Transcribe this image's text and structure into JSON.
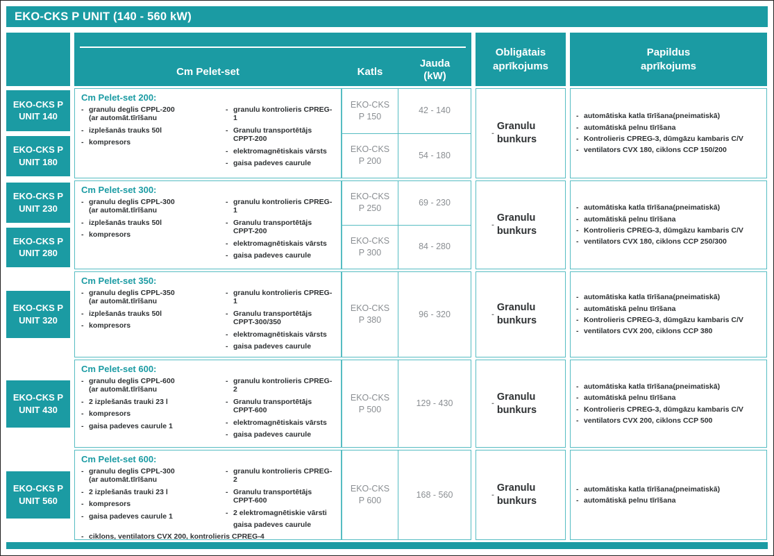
{
  "title": "EKO-CKS P UNIT (140 - 560 kW)",
  "colors": {
    "teal": "#1b9ba3",
    "border": "#55bcc2",
    "ink": "#2e3133",
    "muted": "#8a8e92"
  },
  "columns": {
    "pelet": "Cm Pelet-set",
    "katls": "Katls",
    "jauda": "Jauda\n(kW)",
    "obligatais": "Obligātais\naprīkojums",
    "papildus": "Papildus\naprīkojums"
  },
  "groups": [
    {
      "badges": [
        "EKO-CKS P\nUNIT 140",
        "EKO-CKS P\nUNIT 180"
      ],
      "pelet_title": "Cm Pelet-set 200:",
      "left": [
        "granulu deglis CPPL-200\n(ar automāt.tīrīšanu",
        "izplešanās trauks 50l",
        "kompresors"
      ],
      "right": [
        "granulu kontrolieris CPREG-1",
        "Granulu transportētājs\nCPPT-200",
        "elektromagnētiskais vārsts",
        "gaisa padeves caurule"
      ],
      "katls": [
        {
          "model": "EKO-CKS P 150",
          "jauda": "42 - 140"
        },
        {
          "model": "EKO-CKS P 200",
          "jauda": "54 - 180"
        }
      ],
      "obligatais": "Granulu bunkurs",
      "papildus": [
        "automātiska katla tīrīšana(pneimatiskā)",
        "automātiskā pelnu tīrīšana",
        "Kontrolieris CPREG-3, dūmgāzu kambaris C/V",
        "ventilators CVX 180, ciklons CCP 150/200"
      ]
    },
    {
      "badges": [
        "EKO-CKS P\nUNIT 230",
        "EKO-CKS P\nUNIT 280"
      ],
      "pelet_title": "Cm Pelet-set 300:",
      "left": [
        "granulu deglis CPPL-300\n(ar automāt.tīrīšanu",
        "izplešanās trauks 50l",
        "kompresors"
      ],
      "right": [
        "granulu kontrolieris CPREG-1",
        "Granulu transportētājs\nCPPT-200",
        "elektromagnētiskais vārsts",
        "gaisa padeves caurule"
      ],
      "katls": [
        {
          "model": "EKO-CKS P 250",
          "jauda": "69 - 230"
        },
        {
          "model": "EKO-CKS P 300",
          "jauda": "84 - 280"
        }
      ],
      "obligatais": "Granulu bunkurs",
      "papildus": [
        "automātiska katla tīrīšana(pneimatiskā)",
        "automātiskā pelnu tīrīšana",
        "Kontrolieris CPREG-3, dūmgāzu kambaris C/V",
        "ventilators CVX 180, ciklons CCP 250/300"
      ]
    },
    {
      "badges": [
        "EKO-CKS P\nUNIT 320"
      ],
      "pelet_title": "Cm Pelet-set 350:",
      "left": [
        "granulu deglis CPPL-350\n(ar automāt.tīrīšanu",
        "izplešanās trauks 50l",
        "kompresors"
      ],
      "right": [
        "granulu kontrolieris CPREG-1",
        "Granulu transportētājs\nCPPT-300/350",
        "elektromagnētiskais vārsts",
        "gaisa padeves caurule"
      ],
      "katls": [
        {
          "model": "EKO-CKS P 380",
          "jauda": "96 - 320"
        }
      ],
      "obligatais": "Granulu bunkurs",
      "papildus": [
        "automātiska katla tīrīšana(pneimatiskā)",
        "automātiskā pelnu tīrīšana",
        "Kontrolieris CPREG-3, dūmgāzu kambaris C/V",
        "ventilators CVX 200, ciklons CCP 380"
      ]
    },
    {
      "badges": [
        "EKO-CKS P\nUNIT 430"
      ],
      "pelet_title": "Cm Pelet-set 600:",
      "left": [
        "granulu deglis CPPL-600\n(ar automāt.tīrīšanu",
        "2 izplešanās trauki 23 l",
        "kompresors",
        "gaisa padeves caurule 1"
      ],
      "right": [
        "granulu kontrolieris CPREG-2",
        "Granulu transportētājs\nCPPT-600",
        "elektromagnētiskais vārsts",
        "gaisa padeves caurule"
      ],
      "katls": [
        {
          "model": "EKO-CKS P 500",
          "jauda": "129 - 430"
        }
      ],
      "obligatais": "Granulu bunkurs",
      "papildus": [
        "automātiska katla tīrīšana(pneimatiskā)",
        "automātiskā pelnu tīrīšana",
        "Kontrolieris CPREG-3, dūmgāzu kambaris C/V",
        "ventilators CVX 200, ciklons CCP 500"
      ]
    },
    {
      "badges": [
        "EKO-CKS P\nUNIT 560"
      ],
      "pelet_title": "Cm Pelet-set 600:",
      "left": [
        "granulu deglis CPPL-300\n(ar automāt.tīrīšanu",
        "2 izplešanās trauki 23 l",
        "kompresors",
        "gaisa padeves caurule 1"
      ],
      "right": [
        "granulu kontrolieris CPREG-2",
        "Granulu transportētājs\nCPPT-600",
        "2 elektromagnētiskie vārsti",
        {
          "t": "gaisa padeves caurule",
          "nodash": true
        }
      ],
      "pelet_full": "ciklons, ventilators CVX 200, kontrolieris CPREG-4",
      "katls": [
        {
          "model": "EKO-CKS P 600",
          "jauda": "168 - 560"
        }
      ],
      "obligatais": "Granulu bunkurs",
      "papildus": [
        "automātiska katla tīrīšana(pneimatiskā)",
        "automātiskā pelnu tīrīšana"
      ]
    }
  ]
}
